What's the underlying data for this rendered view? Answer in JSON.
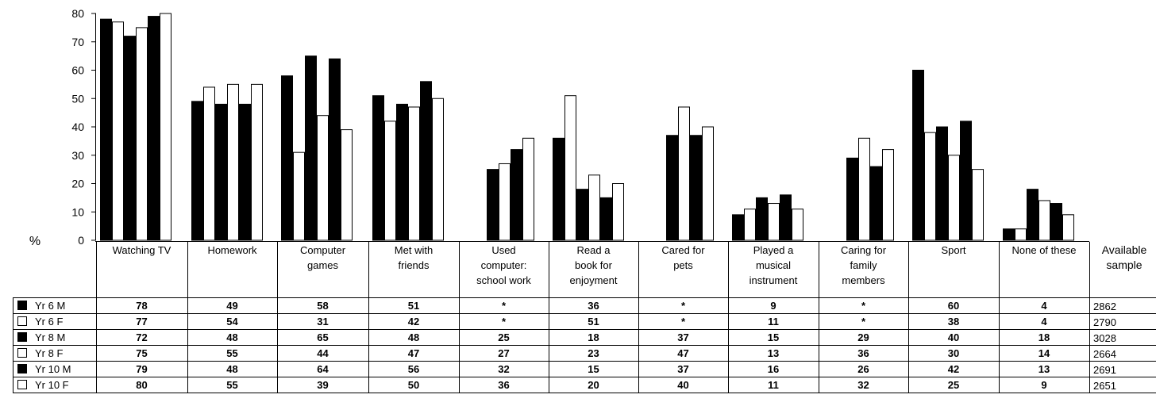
{
  "chart_data": {
    "type": "bar",
    "ylabel": "%",
    "ylim": [
      0,
      80
    ],
    "yticks": [
      "0",
      "10",
      "20",
      "30",
      "40",
      "50",
      "60",
      "70",
      "80"
    ],
    "categories": [
      [
        "Watching TV"
      ],
      [
        "Homework"
      ],
      [
        "Computer",
        "games"
      ],
      [
        "Met with",
        "friends"
      ],
      [
        "Used",
        "computer:",
        "school work"
      ],
      [
        "Read a",
        "book for",
        "enjoyment"
      ],
      [
        "Cared for",
        "pets"
      ],
      [
        "Played a",
        "musical",
        "instrument"
      ],
      [
        "Caring for",
        "family",
        "members"
      ],
      [
        "Sport"
      ],
      [
        "None of these"
      ]
    ],
    "sample_header": [
      "Available",
      "sample"
    ],
    "series": [
      {
        "name": "Yr 6 M",
        "fill": "#000000",
        "values": [
          78,
          49,
          58,
          51,
          null,
          36,
          null,
          9,
          null,
          60,
          4
        ],
        "labels": [
          "78",
          "49",
          "58",
          "51",
          "*",
          "36",
          "*",
          "9",
          "*",
          "60",
          "4"
        ],
        "sample": "2862"
      },
      {
        "name": "Yr 6 F",
        "fill": "#ffffff",
        "values": [
          77,
          54,
          31,
          42,
          null,
          51,
          null,
          11,
          null,
          38,
          4
        ],
        "labels": [
          "77",
          "54",
          "31",
          "42",
          "*",
          "51",
          "*",
          "11",
          "*",
          "38",
          "4"
        ],
        "sample": "2790"
      },
      {
        "name": "Yr 8 M",
        "fill": "#000000",
        "values": [
          72,
          48,
          65,
          48,
          25,
          18,
          37,
          15,
          29,
          40,
          18
        ],
        "labels": [
          "72",
          "48",
          "65",
          "48",
          "25",
          "18",
          "37",
          "15",
          "29",
          "40",
          "18"
        ],
        "sample": "3028"
      },
      {
        "name": "Yr 8 F",
        "fill": "#ffffff",
        "values": [
          75,
          55,
          44,
          47,
          27,
          23,
          47,
          13,
          36,
          30,
          14
        ],
        "labels": [
          "75",
          "55",
          "44",
          "47",
          "27",
          "23",
          "47",
          "13",
          "36",
          "30",
          "14"
        ],
        "sample": "2664"
      },
      {
        "name": "Yr 10 M",
        "fill": "#000000",
        "values": [
          79,
          48,
          64,
          56,
          32,
          15,
          37,
          16,
          26,
          42,
          13
        ],
        "labels": [
          "79",
          "48",
          "64",
          "56",
          "32",
          "15",
          "37",
          "16",
          "26",
          "42",
          "13"
        ],
        "sample": "2691"
      },
      {
        "name": "Yr 10 F",
        "fill": "#ffffff",
        "values": [
          80,
          55,
          39,
          50,
          36,
          20,
          40,
          11,
          32,
          25,
          9
        ],
        "labels": [
          "80",
          "55",
          "39",
          "50",
          "36",
          "20",
          "40",
          "11",
          "32",
          "25",
          "9"
        ],
        "sample": "2651"
      }
    ]
  }
}
